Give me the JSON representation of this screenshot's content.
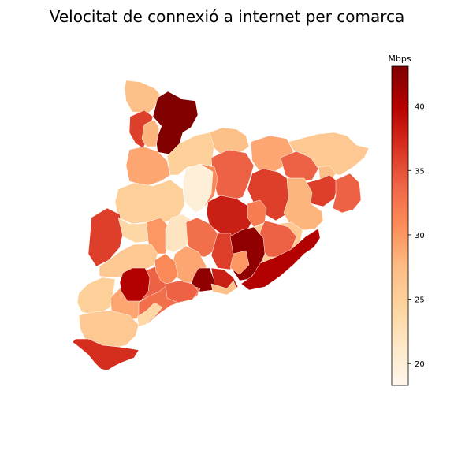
{
  "title": "Velocitat de connexió a internet per comarca",
  "colorbar": {
    "label": "Mbps",
    "min": 18.3,
    "max": 43.1,
    "ticks": [
      20,
      25,
      30,
      35,
      40
    ],
    "tick_labels": [
      "20",
      "25",
      "30",
      "35",
      "40"
    ],
    "colormap": "OrRd",
    "stops": [
      "#fff7ec",
      "#fee8c8",
      "#fdd49e",
      "#fdbb84",
      "#fc8d59",
      "#ef6548",
      "#d7301f",
      "#b30000",
      "#7f0000"
    ]
  },
  "map": {
    "regions": [
      {
        "value": 27
      },
      {
        "value": 43
      },
      {
        "value": 36
      },
      {
        "value": 28
      },
      {
        "value": 29
      },
      {
        "value": 25
      },
      {
        "value": 27
      },
      {
        "value": 29
      },
      {
        "value": 26
      },
      {
        "value": 34
      },
      {
        "value": 27
      },
      {
        "value": 34
      },
      {
        "value": 31
      },
      {
        "value": 20
      },
      {
        "value": 25
      },
      {
        "value": 36
      },
      {
        "value": 36
      },
      {
        "value": 38
      },
      {
        "value": 32
      },
      {
        "value": 28
      },
      {
        "value": 34
      },
      {
        "value": 36
      },
      {
        "value": 24
      },
      {
        "value": 30
      },
      {
        "value": 22
      },
      {
        "value": 33
      },
      {
        "value": 36
      },
      {
        "value": 26
      },
      {
        "value": 34
      },
      {
        "value": 42
      },
      {
        "value": 40
      },
      {
        "value": 30
      },
      {
        "value": 29
      },
      {
        "value": 38
      },
      {
        "value": 42
      },
      {
        "value": 26
      },
      {
        "value": 34
      },
      {
        "value": 31
      },
      {
        "value": 25
      },
      {
        "value": 29
      },
      {
        "value": 40
      },
      {
        "value": 26
      },
      {
        "value": 33
      },
      {
        "value": 34
      },
      {
        "value": 24
      },
      {
        "value": 27
      },
      {
        "value": 37
      }
    ]
  }
}
